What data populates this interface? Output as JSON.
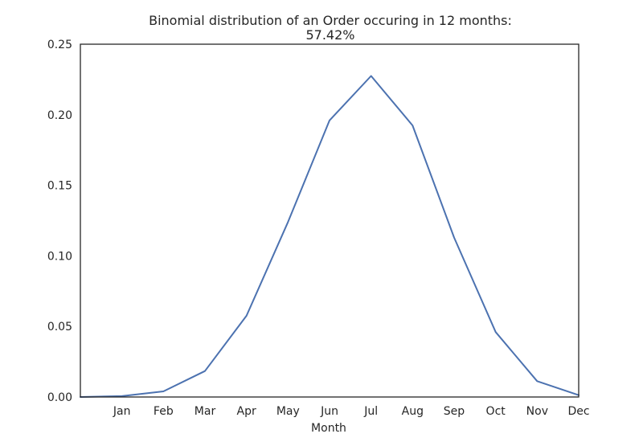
{
  "chart_data": {
    "type": "line",
    "title_line1": "Binomial distribution of an Order occuring in 12 months:",
    "title_line2": "57.42%",
    "xlabel": "Month",
    "ylabel": "",
    "categories": [
      "Jan",
      "Feb",
      "Mar",
      "Apr",
      "May",
      "Jun",
      "Jul",
      "Aug",
      "Sep",
      "Oct",
      "Nov",
      "Dec"
    ],
    "x": [
      0,
      1,
      2,
      3,
      4,
      5,
      6,
      7,
      8,
      9,
      10,
      11,
      12
    ],
    "y": [
      0.0,
      0.0006,
      0.004,
      0.0184,
      0.0576,
      0.124,
      0.196,
      0.2275,
      0.1924,
      0.113,
      0.046,
      0.0112,
      0.0013
    ],
    "xlim": [
      0,
      12
    ],
    "ylim": [
      0,
      0.25
    ],
    "yticks": [
      "0.00",
      "0.05",
      "0.10",
      "0.15",
      "0.20",
      "0.25"
    ],
    "ytick_values": [
      0,
      0.05,
      0.1,
      0.15,
      0.2,
      0.25
    ],
    "xtick_positions": [
      1,
      2,
      3,
      4,
      5,
      6,
      7,
      8,
      9,
      10,
      11,
      12
    ],
    "grid": false,
    "line_color": "#4c72b0",
    "axes_color": "#262626"
  }
}
